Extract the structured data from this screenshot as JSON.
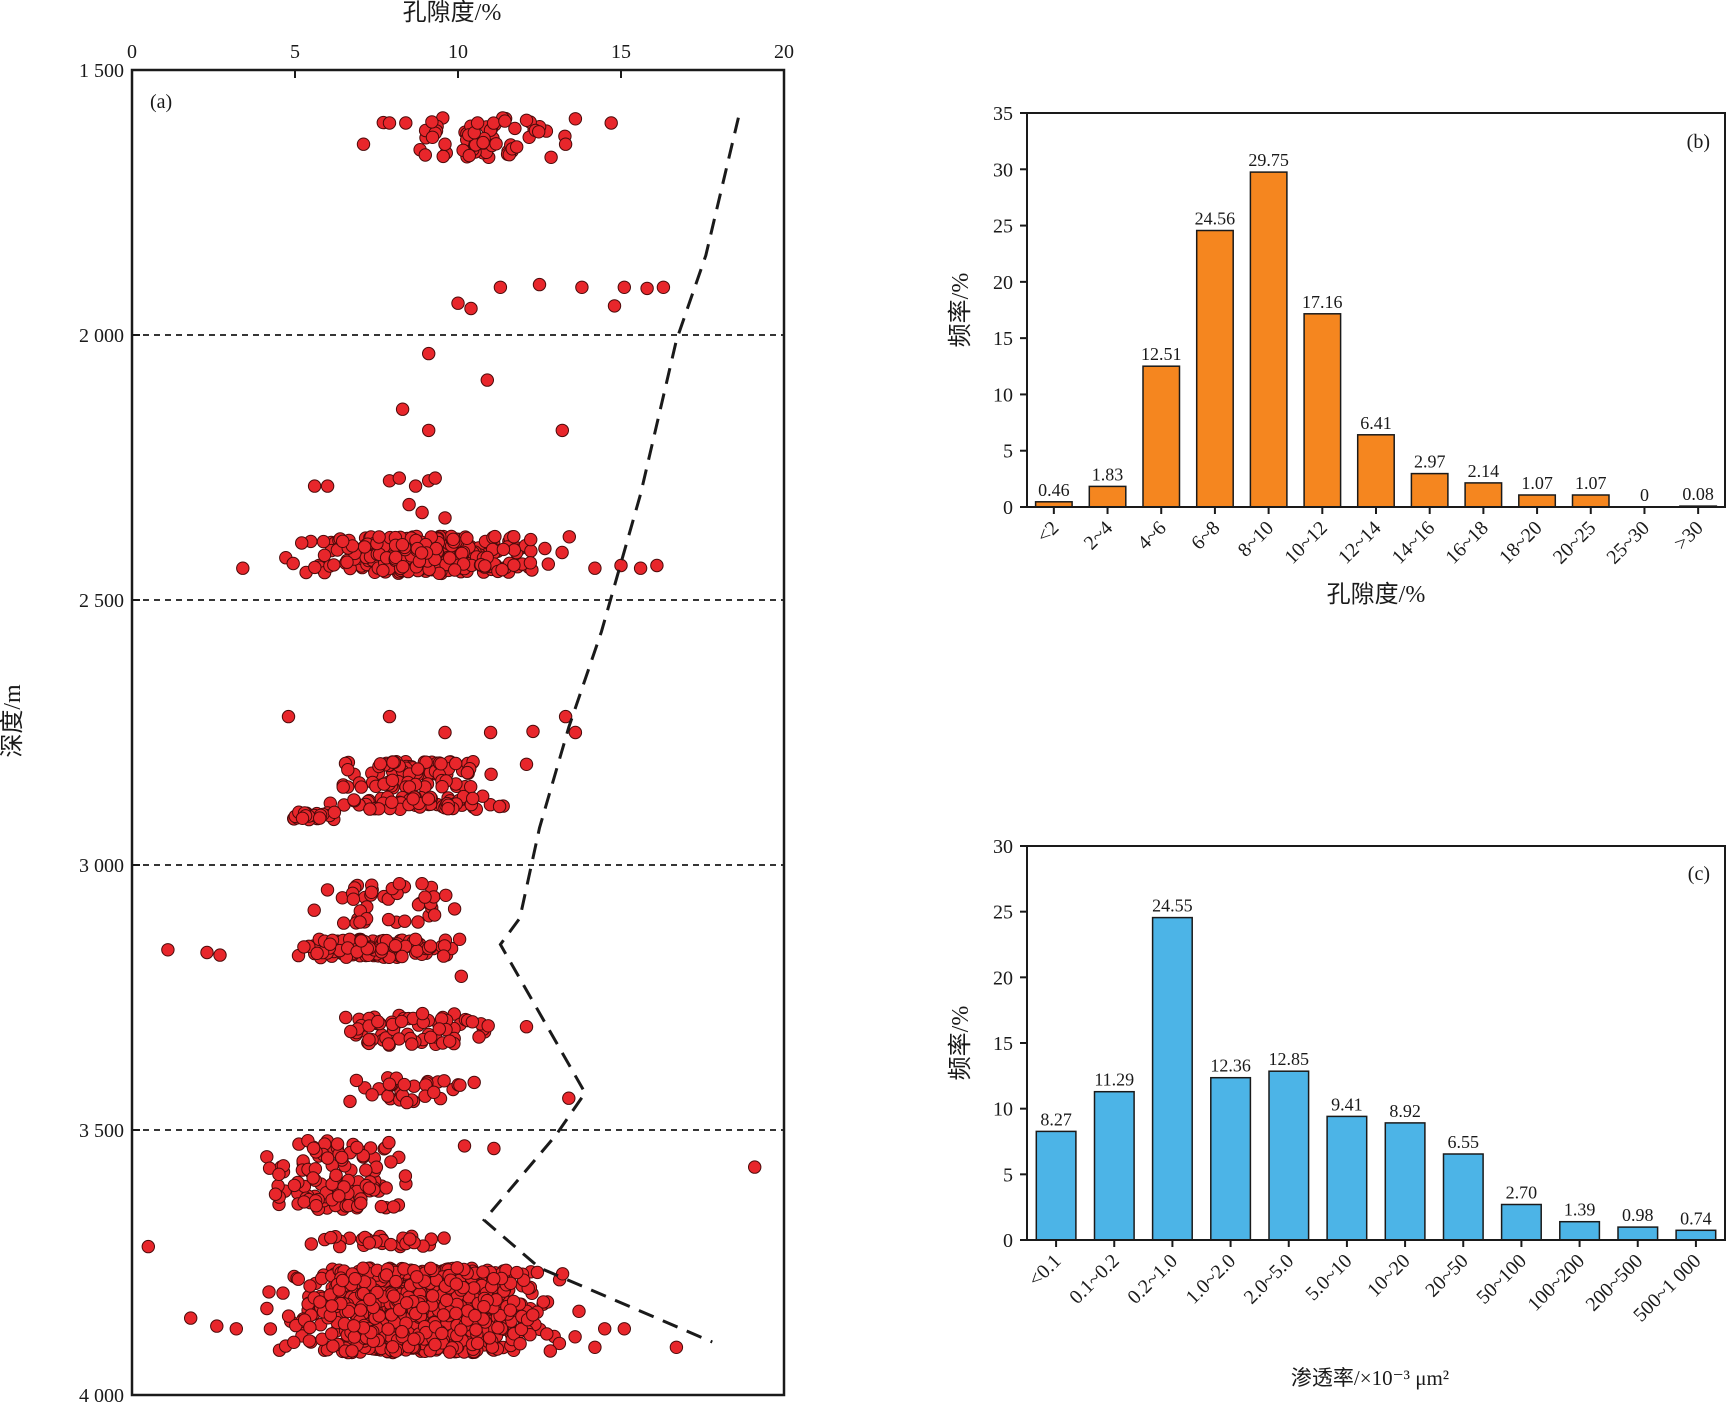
{
  "chart_data": [
    {
      "panel": "(a)",
      "type": "scatter",
      "xlabel": "孔隙度/%",
      "ylabel": "深度/m",
      "xlim": [
        0,
        20
      ],
      "ylim": [
        1500,
        4000
      ],
      "y_inverted": true,
      "x_axis_position": "top",
      "xticks": [
        0,
        5,
        10,
        15,
        20
      ],
      "yticks": [
        1500,
        2000,
        2500,
        3000,
        3500,
        4000
      ],
      "ytick_labels": [
        "1 500",
        "2 000",
        "2 500",
        "3 000",
        "3 500",
        "4 000"
      ],
      "hlines": [
        2000,
        2500,
        3000,
        3500
      ],
      "marker_color": "#e8262b",
      "trend_line": [
        [
          18.6,
          1590
        ],
        [
          17.6,
          1850
        ],
        [
          16.7,
          2010
        ],
        [
          15.6,
          2300
        ],
        [
          14.4,
          2560
        ],
        [
          13.4,
          2740
        ],
        [
          12.5,
          2930
        ],
        [
          11.9,
          3100
        ],
        [
          11.3,
          3150
        ],
        [
          13.9,
          3430
        ],
        [
          13.0,
          3510
        ],
        [
          10.8,
          3670
        ],
        [
          12.5,
          3760
        ],
        [
          17.8,
          3900
        ]
      ],
      "clusters": [
        {
          "depth_range": [
            1590,
            1665
          ],
          "x_range": [
            6.8,
            14.6
          ],
          "n": 60,
          "extra": [
            [
              7.9,
              1600
            ],
            [
              8.4,
              1600
            ],
            [
              9.2,
              1598
            ],
            [
              10.6,
              1600
            ],
            [
              12.1,
              1595
            ],
            [
              13.6,
              1592
            ],
            [
              14.7,
              1600
            ],
            [
              7.1,
              1640
            ],
            [
              9.6,
              1640
            ],
            [
              11.8,
              1645
            ],
            [
              13.3,
              1640
            ]
          ]
        },
        {
          "depth_range": [
            1900,
            1950
          ],
          "x_range": [
            10,
            16.4
          ],
          "n": 0,
          "extra": [
            [
              10.0,
              1940
            ],
            [
              10.4,
              1950
            ],
            [
              11.3,
              1910
            ],
            [
              12.5,
              1905
            ],
            [
              13.8,
              1910
            ],
            [
              14.8,
              1945
            ],
            [
              15.1,
              1910
            ],
            [
              15.8,
              1912
            ],
            [
              16.3,
              1910
            ]
          ]
        },
        {
          "depth_range": [
            2030,
            2180
          ],
          "x_range": [
            8,
            13.3
          ],
          "n": 0,
          "extra": [
            [
              9.1,
              2035
            ],
            [
              10.9,
              2085
            ],
            [
              8.3,
              2140
            ],
            [
              9.1,
              2180
            ],
            [
              13.2,
              2180
            ]
          ]
        },
        {
          "depth_range": [
            2270,
            2345
          ],
          "x_range": [
            5.6,
            9.4
          ],
          "n": 0,
          "extra": [
            [
              5.6,
              2285
            ],
            [
              6.0,
              2285
            ],
            [
              7.9,
              2275
            ],
            [
              8.2,
              2270
            ],
            [
              8.7,
              2285
            ],
            [
              9.1,
              2275
            ],
            [
              9.3,
              2270
            ],
            [
              8.5,
              2320
            ],
            [
              8.9,
              2335
            ],
            [
              9.6,
              2345
            ]
          ]
        },
        {
          "depth_range": [
            2380,
            2450
          ],
          "x_range": [
            4.2,
            13.8
          ],
          "n": 320,
          "extra": [
            [
              3.4,
              2440
            ],
            [
              14.2,
              2440
            ],
            [
              15.0,
              2435
            ],
            [
              15.6,
              2440
            ],
            [
              16.1,
              2435
            ]
          ]
        },
        {
          "depth_range": [
            2710,
            2760
          ],
          "x_range": [
            4.8,
            13.6
          ],
          "n": 0,
          "extra": [
            [
              4.8,
              2720
            ],
            [
              7.9,
              2720
            ],
            [
              9.6,
              2750
            ],
            [
              11.0,
              2750
            ],
            [
              12.3,
              2748
            ],
            [
              13.3,
              2720
            ],
            [
              13.6,
              2750
            ]
          ]
        },
        {
          "depth_range": [
            2805,
            2830
          ],
          "x_range": [
            5.6,
            12.0
          ],
          "n": 60,
          "extra": [
            [
              12.1,
              2810
            ]
          ]
        },
        {
          "depth_range": [
            2840,
            2855
          ],
          "x_range": [
            5.3,
            11.4
          ],
          "n": 30,
          "extra": []
        },
        {
          "depth_range": [
            2870,
            2895
          ],
          "x_range": [
            5.4,
            12.6
          ],
          "n": 70,
          "extra": []
        },
        {
          "depth_range": [
            2900,
            2915
          ],
          "x_range": [
            4.1,
            6.8
          ],
          "n": 25,
          "extra": []
        },
        {
          "depth_range": [
            3035,
            3110
          ],
          "x_range": [
            4.3,
            10.8
          ],
          "n": 45,
          "extra": []
        },
        {
          "depth_range": [
            3140,
            3175
          ],
          "x_range": [
            3.8,
            10.6
          ],
          "n": 130,
          "extra": [
            [
              1.1,
              3160
            ],
            [
              2.3,
              3165
            ],
            [
              2.7,
              3170
            ],
            [
              10.1,
              3210
            ]
          ]
        },
        {
          "depth_range": [
            3280,
            3340
          ],
          "x_range": [
            5.4,
            12.0
          ],
          "n": 70,
          "extra": [
            [
              12.1,
              3305
            ]
          ]
        },
        {
          "depth_range": [
            3400,
            3450
          ],
          "x_range": [
            5.6,
            11.4
          ],
          "n": 35,
          "extra": [
            [
              13.4,
              3440
            ]
          ]
        },
        {
          "depth_range": [
            3520,
            3650
          ],
          "x_range": [
            3.3,
            9.4
          ],
          "n": 120,
          "extra": [
            [
              10.2,
              3530
            ],
            [
              11.1,
              3535
            ],
            [
              19.1,
              3570
            ]
          ]
        },
        {
          "depth_range": [
            3700,
            3720
          ],
          "x_range": [
            5.5,
            10.0
          ],
          "n": 30,
          "extra": [
            [
              0.5,
              3720
            ],
            [
              5.5,
              3715
            ]
          ]
        },
        {
          "depth_range": [
            3760,
            3920
          ],
          "x_range": [
            3.7,
            14.0
          ],
          "n": 1100,
          "extra": [
            [
              1.8,
              3855
            ],
            [
              2.6,
              3870
            ],
            [
              3.2,
              3875
            ],
            [
              14.5,
              3875
            ],
            [
              15.1,
              3875
            ],
            [
              14.2,
              3910
            ],
            [
              16.7,
              3910
            ]
          ]
        }
      ]
    },
    {
      "panel": "(b)",
      "type": "bar",
      "categories": [
        "<2",
        "2~4",
        "4~6",
        "6~8",
        "8~10",
        "10~12",
        "12~14",
        "14~16",
        "16~18",
        "18~20",
        "20~25",
        "25~30",
        ">30"
      ],
      "values": [
        0.46,
        1.83,
        12.51,
        24.56,
        29.75,
        17.16,
        6.41,
        2.97,
        2.14,
        1.07,
        1.07,
        0,
        0.08
      ],
      "value_labels": [
        "0.46",
        "1.83",
        "12.51",
        "24.56",
        "29.75",
        "17.16",
        "6.41",
        "2.97",
        "2.14",
        "1.07",
        "1.07",
        "0",
        "0.08"
      ],
      "xlabel": "孔隙度/%",
      "ylabel": "频率/%",
      "ylim": [
        0,
        35
      ],
      "yticks": [
        0,
        5,
        10,
        15,
        20,
        25,
        30,
        35
      ],
      "bar_color": "#f5861f"
    },
    {
      "panel": "(c)",
      "type": "bar",
      "categories": [
        "<0.1",
        "0.1~0.2",
        "0.2~1.0",
        "1.0~2.0",
        "2.0~5.0",
        "5.0~10",
        "10~20",
        "20~50",
        "50~100",
        "100~200",
        "200~500",
        "500~1 000"
      ],
      "values": [
        8.27,
        11.29,
        24.55,
        12.36,
        12.85,
        9.41,
        8.92,
        6.55,
        2.7,
        1.39,
        0.98,
        0.74
      ],
      "value_labels": [
        "8.27",
        "11.29",
        "24.55",
        "12.36",
        "12.85",
        "9.41",
        "8.92",
        "6.55",
        "2.70",
        "1.39",
        "0.98",
        "0.74"
      ],
      "xlabel": "渗透率/×10⁻³ μm²",
      "ylabel": "频率/%",
      "ylim": [
        0,
        30
      ],
      "yticks": [
        0,
        5,
        10,
        15,
        20,
        25,
        30
      ],
      "bar_color": "#4cb4e7"
    }
  ]
}
